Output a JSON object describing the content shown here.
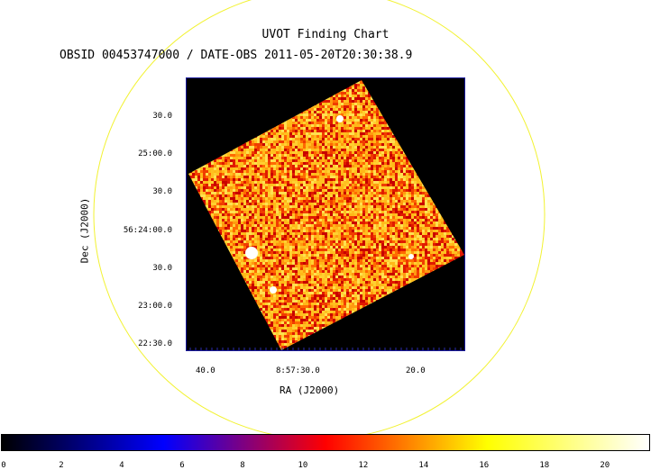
{
  "title": "UVOT Finding Chart",
  "subtitle": "OBSID 00453747000 / DATE-OBS 2011-05-20T20:30:38.9",
  "axes": {
    "xlabel": "RA (J2000)",
    "ylabel": "Dec (J2000)",
    "x_ticks": [
      "40.0",
      "8:57:30.0",
      "20.0"
    ],
    "y_ticks": [
      "30.0",
      "25:00.0",
      "30.0",
      "56:24:00.0",
      "30.0",
      "23:00.0",
      "22:30.0"
    ]
  },
  "colorbar": {
    "ticks": [
      "0",
      "2",
      "4",
      "6",
      "8",
      "10",
      "12",
      "14",
      "16",
      "18",
      "20"
    ],
    "range": [
      0,
      21.5
    ],
    "colormap": [
      "#000000",
      "#0000ff",
      "#ff0000",
      "#ffff00",
      "#ffffff"
    ]
  },
  "colors": {
    "fov_circle": "#ffff00",
    "frame": "#1a1aa0",
    "background": "#000000"
  }
}
